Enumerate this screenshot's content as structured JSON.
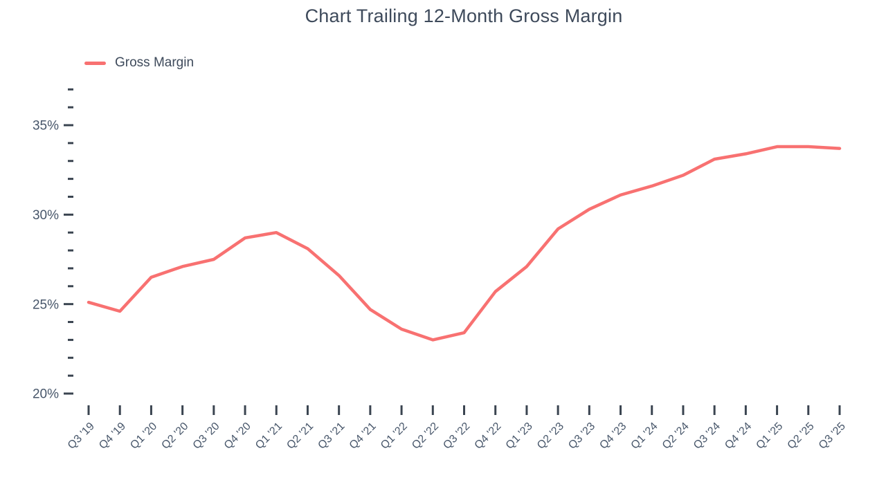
{
  "title": "Chart Trailing 12-Month Gross Margin",
  "legend": {
    "items": [
      {
        "label": "Gross Margin",
        "color": "#F87171"
      }
    ]
  },
  "colors": {
    "series_line": "#F87171",
    "title_text": "#3E4A5B",
    "axis_text": "#47566A",
    "tick_mark": "#3A4450"
  },
  "chart_data": {
    "type": "line",
    "title": "Chart Trailing 12-Month Gross Margin",
    "categories": [
      "Q3 '19",
      "Q4 '19",
      "Q1 '20",
      "Q2 '20",
      "Q3 '20",
      "Q4 '20",
      "Q1 '21",
      "Q2 '21",
      "Q3 '21",
      "Q4 '21",
      "Q1 '22",
      "Q2 '22",
      "Q3 '22",
      "Q4 '22",
      "Q1 '23",
      "Q2 '23",
      "Q3 '23",
      "Q4 '23",
      "Q1 '24",
      "Q2 '24",
      "Q3 '24",
      "Q4 '24",
      "Q1 '25",
      "Q2 '25",
      "Q3 '25"
    ],
    "series": [
      {
        "name": "Gross Margin",
        "color": "#F87171",
        "values": [
          25.1,
          24.6,
          26.5,
          27.1,
          27.5,
          28.7,
          29.0,
          28.1,
          26.6,
          24.7,
          23.6,
          23.0,
          23.4,
          25.7,
          27.1,
          29.2,
          30.3,
          31.1,
          31.6,
          32.2,
          33.1,
          33.4,
          33.8,
          33.8,
          33.7
        ]
      }
    ],
    "xlabel": "",
    "ylabel": "",
    "y_axis": {
      "min": 20,
      "max": 37,
      "unit": "%",
      "major_ticks": [
        20,
        25,
        30,
        35
      ],
      "minor_tick_step": 1
    },
    "grid": false,
    "legend_position": "top-left"
  }
}
